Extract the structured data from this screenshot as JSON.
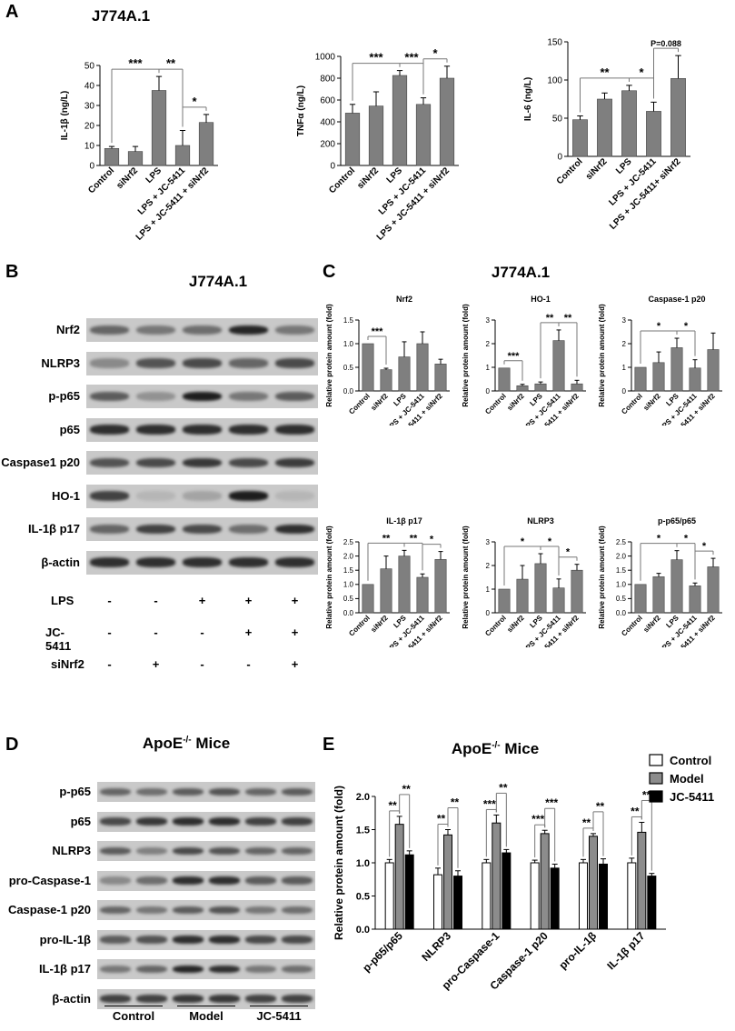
{
  "panels": {
    "a": {
      "letter": "A",
      "title": "J774A.1"
    },
    "b": {
      "letter": "B",
      "title": "J774A.1"
    },
    "c": {
      "letter": "C",
      "title": "J774A.1"
    },
    "d": {
      "letter": "D",
      "title_main": "ApoE",
      "title_sup": "-/-",
      "title_rest": " Mice"
    },
    "e": {
      "letter": "E",
      "title_main": "ApoE",
      "title_sup": "-/-",
      "title_rest": " Mice"
    }
  },
  "blot_b": {
    "rows": [
      "Nrf2",
      "NLRP3",
      "p-p65",
      "p65",
      "Caspase1 p20",
      "HO-1",
      "IL-1β p17",
      "β-actin"
    ],
    "treatments": [
      {
        "name": "LPS",
        "signs": [
          "-",
          "-",
          "+",
          "+",
          "+"
        ]
      },
      {
        "name": "JC-5411",
        "signs": [
          "-",
          "-",
          "-",
          "+",
          "+"
        ]
      },
      {
        "name": "siNrf2",
        "signs": [
          "-",
          "+",
          "-",
          "-",
          "+"
        ]
      }
    ]
  },
  "blot_d": {
    "rows": [
      "p-p65",
      "p65",
      "NLRP3",
      "pro-Caspase-1",
      "Caspase-1 p20",
      "pro-IL-1β",
      "IL-1β p17",
      "β-actin"
    ],
    "groups": [
      "Control",
      "Model",
      "JC-5411"
    ]
  },
  "chart_data": [
    {
      "id": "A1",
      "type": "bar",
      "categories": [
        "Control",
        "siNrf2",
        "LPS",
        "LPS + JC-5411",
        "LPS + JC-5411 + siNrf2"
      ],
      "values": [
        8.5,
        7,
        37.5,
        10,
        21.5
      ],
      "errors": [
        1,
        2.5,
        7,
        7.5,
        4
      ],
      "ylabel": "IL-1β (ng/L)",
      "ylim": [
        0,
        50
      ],
      "yticks": [
        0,
        10,
        20,
        30,
        40,
        50
      ],
      "sig": [
        {
          "a": 0,
          "b": 2,
          "label": "***"
        },
        {
          "a": 2,
          "b": 3,
          "label": "**"
        },
        {
          "a": 3,
          "b": 4,
          "label": "*"
        }
      ]
    },
    {
      "id": "A2",
      "type": "bar",
      "categories": [
        "Control",
        "siNrf2",
        "LPS",
        "LPS + JC-5411",
        "LPS + JC-5411 + siNrf2"
      ],
      "values": [
        480,
        545,
        825,
        560,
        800
      ],
      "errors": [
        80,
        130,
        45,
        60,
        110
      ],
      "ylabel": "TNFα (ng/L)",
      "ylim": [
        0,
        1000
      ],
      "yticks": [
        0,
        200,
        400,
        600,
        800,
        1000
      ],
      "sig": [
        {
          "a": 0,
          "b": 2,
          "label": "***"
        },
        {
          "a": 2,
          "b": 3,
          "label": "***"
        },
        {
          "a": 3,
          "b": 4,
          "label": "*"
        }
      ]
    },
    {
      "id": "A3",
      "type": "bar",
      "categories": [
        "Control",
        "siNrf2",
        "LPS",
        "LPS + JC-5411",
        "LPS + JC-5411+ siNrf2"
      ],
      "values": [
        48,
        75,
        86,
        59,
        102
      ],
      "errors": [
        5,
        8,
        7,
        12,
        30
      ],
      "ylabel": "IL-6 (ng/L)",
      "ylim": [
        0,
        150
      ],
      "yticks": [
        0,
        50,
        100,
        150
      ],
      "sig": [
        {
          "a": 0,
          "b": 2,
          "label": "**"
        },
        {
          "a": 2,
          "b": 3,
          "label": "*"
        },
        {
          "a": 3,
          "b": 4,
          "label": "P=0.088"
        }
      ]
    },
    {
      "id": "C1",
      "type": "bar",
      "title": "Nrf2",
      "categories": [
        "Control",
        "siNrf2",
        "LPS",
        "LPS + JC-5411",
        "LPS + JC-5411 + siNrf2"
      ],
      "values": [
        1.0,
        0.45,
        0.72,
        1.0,
        0.57
      ],
      "errors": [
        0,
        0.03,
        0.32,
        0.25,
        0.1
      ],
      "ylabel": "Relative protein amount (fold)",
      "ylim": [
        0,
        1.5
      ],
      "yticks": [
        "0.0",
        "0.5",
        "1.0",
        "1.5"
      ],
      "sig": [
        {
          "a": 0,
          "b": 1,
          "label": "***"
        }
      ]
    },
    {
      "id": "C2",
      "type": "bar",
      "title": "HO-1",
      "categories": [
        "Control",
        "siNrf2",
        "LPS",
        "LPS + JC-5411",
        "LPS + JC-5411 + siNrf2"
      ],
      "values": [
        0.97,
        0.22,
        0.3,
        2.13,
        0.3
      ],
      "errors": [
        0,
        0.06,
        0.08,
        0.45,
        0.15
      ],
      "ylabel": "Relative protein amount (fold)",
      "ylim": [
        0,
        3
      ],
      "yticks": [
        0,
        1,
        2,
        3
      ],
      "sig": [
        {
          "a": 0,
          "b": 1,
          "label": "***"
        },
        {
          "a": 2,
          "b": 3,
          "label": "**"
        },
        {
          "a": 3,
          "b": 4,
          "label": "**"
        }
      ]
    },
    {
      "id": "C3",
      "type": "bar",
      "title": "Caspase-1 p20",
      "categories": [
        "Control",
        "siNrf2",
        "LPS",
        "LPS + JC-5411",
        "LPS + JC-5411 + siNrf2"
      ],
      "values": [
        1.0,
        1.2,
        1.83,
        0.97,
        1.75
      ],
      "errors": [
        0,
        0.45,
        0.4,
        0.35,
        0.7
      ],
      "ylabel": "Relative protein amount (fold)",
      "ylim": [
        0,
        3
      ],
      "yticks": [
        0,
        1,
        2,
        3
      ],
      "sig": [
        {
          "a": 0,
          "b": 2,
          "label": "*"
        },
        {
          "a": 2,
          "b": 3,
          "label": "*"
        }
      ]
    },
    {
      "id": "C4",
      "type": "bar",
      "title": "IL-1β p17",
      "categories": [
        "Control",
        "siNrf2",
        "LPS",
        "LPS + JC-5411",
        "LPS + JC-5411 + siNrf2"
      ],
      "values": [
        1.0,
        1.55,
        2.0,
        1.25,
        1.88
      ],
      "errors": [
        0,
        0.45,
        0.2,
        0.12,
        0.28
      ],
      "ylabel": "Relative protein amount (fold)",
      "ylim": [
        0,
        2.5
      ],
      "yticks": [
        "0.0",
        "0.5",
        "1.0",
        "1.5",
        "2.0",
        "2.5"
      ],
      "sig": [
        {
          "a": 0,
          "b": 2,
          "label": "**"
        },
        {
          "a": 2,
          "b": 3,
          "label": "**"
        },
        {
          "a": 3,
          "b": 4,
          "label": "*"
        }
      ]
    },
    {
      "id": "C5",
      "type": "bar",
      "title": "NLRP3",
      "categories": [
        "Control",
        "siNrf2",
        "LPS",
        "LPS + JC-5411",
        "LPS + JC-5411 + siNrf2"
      ],
      "values": [
        1.0,
        1.42,
        2.08,
        1.05,
        1.8
      ],
      "errors": [
        0,
        0.58,
        0.42,
        0.38,
        0.25
      ],
      "ylabel": "Relative protein amount (fold)",
      "ylim": [
        0,
        3
      ],
      "yticks": [
        0,
        1,
        2,
        3
      ],
      "sig": [
        {
          "a": 0,
          "b": 2,
          "label": "*"
        },
        {
          "a": 2,
          "b": 3,
          "label": "*"
        },
        {
          "a": 3,
          "b": 4,
          "label": "*"
        }
      ]
    },
    {
      "id": "C6",
      "type": "bar",
      "title": "p-p65/p65",
      "categories": [
        "Control",
        "siNrf2",
        "LPS",
        "LPS + JC-5411",
        "LPS + JC-5411 + siNrf2"
      ],
      "values": [
        1.0,
        1.27,
        1.87,
        0.95,
        1.62
      ],
      "errors": [
        0,
        0.12,
        0.32,
        0.1,
        0.3
      ],
      "ylabel": "Relative protein amount (fold)",
      "ylim": [
        0,
        2.5
      ],
      "yticks": [
        "0.0",
        "0.5",
        "1.0",
        "1.5",
        "2.0",
        "2.5"
      ],
      "sig": [
        {
          "a": 0,
          "b": 2,
          "label": "*"
        },
        {
          "a": 2,
          "b": 3,
          "label": "*"
        },
        {
          "a": 3,
          "b": 4,
          "label": "*"
        }
      ]
    },
    {
      "id": "E",
      "type": "bar",
      "categories": [
        "p-p65/p65",
        "NLRP3",
        "pro-Caspase-1",
        "Caspase-1 p20",
        "pro-IL-1β",
        "IL-1β p17"
      ],
      "series": [
        {
          "name": "Control",
          "color": "#ffffff",
          "values": [
            1.0,
            0.82,
            1.0,
            1.0,
            1.0,
            1.0
          ],
          "errors": [
            0.05,
            0.1,
            0.05,
            0.04,
            0.05,
            0.07
          ]
        },
        {
          "name": "Model",
          "color": "#8c8c8c",
          "values": [
            1.58,
            1.42,
            1.6,
            1.44,
            1.4,
            1.46
          ],
          "errors": [
            0.12,
            0.08,
            0.12,
            0.05,
            0.04,
            0.15
          ]
        },
        {
          "name": "JC-5411",
          "color": "#000000",
          "values": [
            1.12,
            0.8,
            1.15,
            0.92,
            0.98,
            0.8
          ],
          "errors": [
            0.06,
            0.08,
            0.05,
            0.06,
            0.08,
            0.04
          ]
        }
      ],
      "ylabel": "Relative protein amount (fold)",
      "ylim": [
        0,
        2
      ],
      "yticks": [
        "0.0",
        "0.5",
        "1.0",
        "1.5",
        "2.0"
      ],
      "legend": "top-right",
      "sig": [
        [
          "**",
          "**"
        ],
        [
          "**",
          "**"
        ],
        [
          "***",
          "**"
        ],
        [
          "***",
          "***"
        ],
        [
          "**",
          "**"
        ],
        [
          "**",
          "***"
        ]
      ]
    }
  ]
}
